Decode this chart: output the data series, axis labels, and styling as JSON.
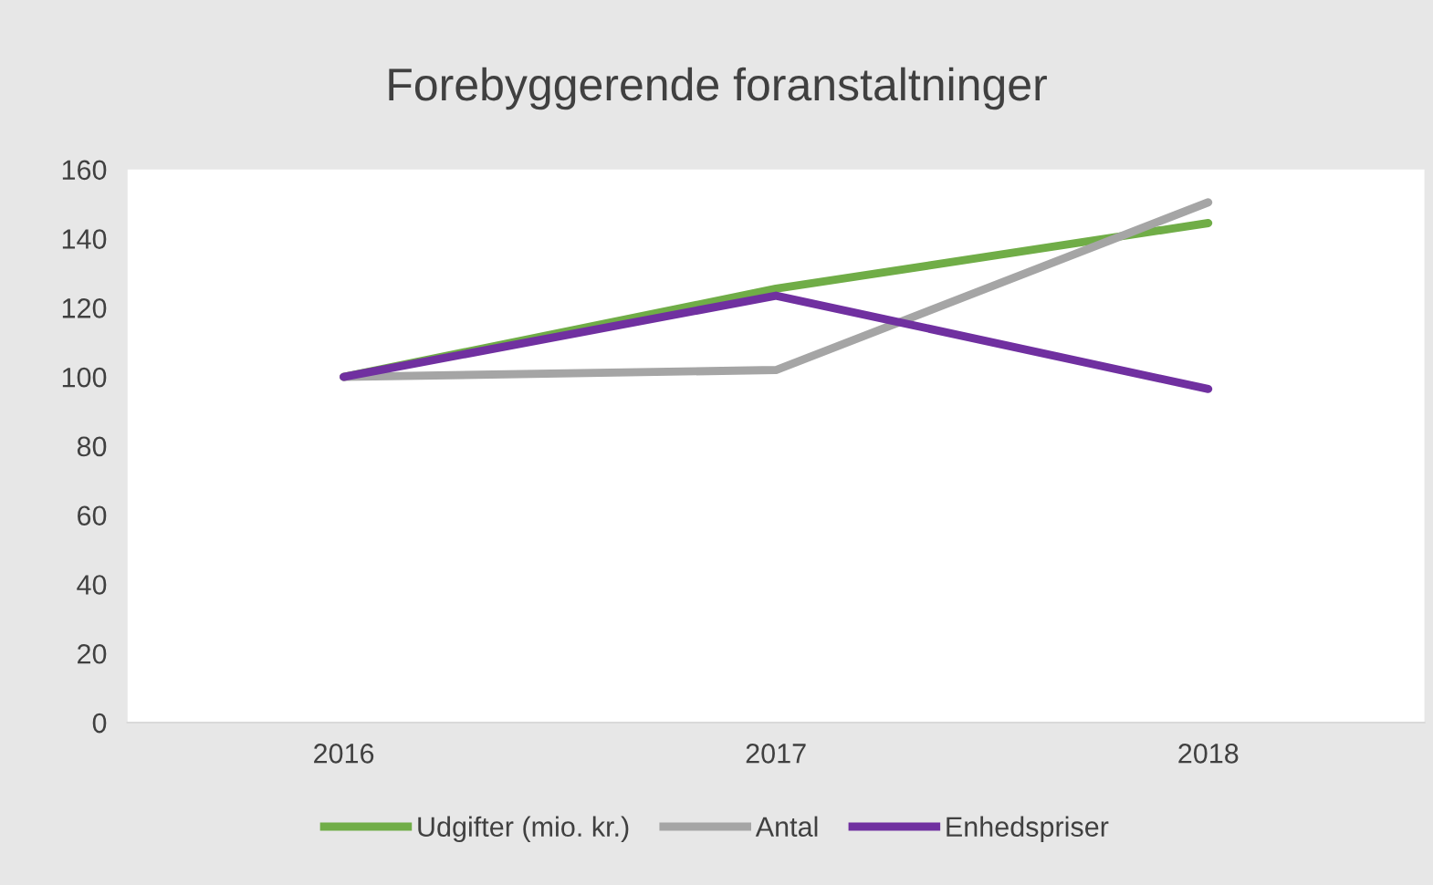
{
  "chart_data": {
    "type": "line",
    "title": "Forebyggerende foranstaltninger",
    "categories": [
      "2016",
      "2017",
      "2018"
    ],
    "series": [
      {
        "name": "Udgifter (mio. kr.)",
        "color": "#70ad47",
        "values": [
          100,
          125.5,
          144.5
        ]
      },
      {
        "name": "Antal",
        "color": "#a5a5a5",
        "values": [
          100,
          102,
          150.5
        ]
      },
      {
        "name": "Enhedspriser",
        "color": "#7030a0",
        "values": [
          100,
          123.5,
          96.5
        ]
      }
    ],
    "ylim": [
      0,
      160
    ],
    "yticks": [
      0,
      20,
      40,
      60,
      80,
      100,
      120,
      140,
      160
    ],
    "grid": false,
    "legend": "bottom",
    "marker": "none",
    "line_style": "solid"
  }
}
